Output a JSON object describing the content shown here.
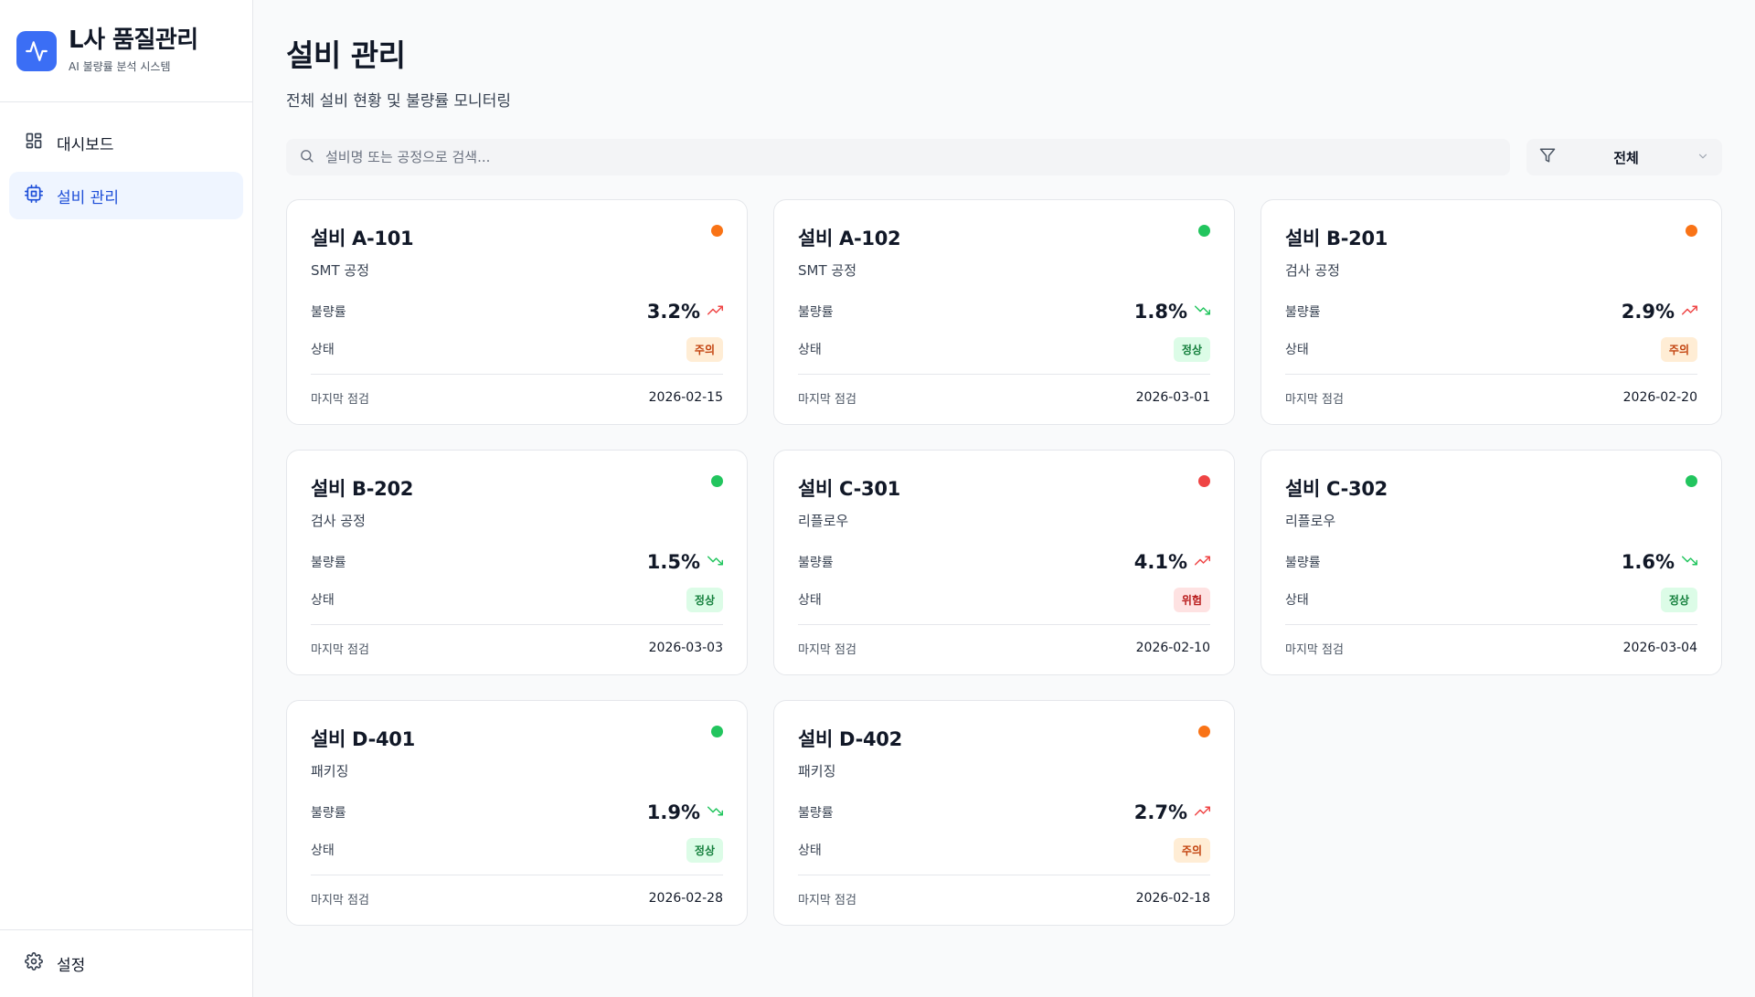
{
  "brand": {
    "title": "L사 품질관리",
    "subtitle": "AI 불량률 분석 시스템",
    "color": "#3b6ef5"
  },
  "nav": [
    {
      "label": "대시보드",
      "icon": "dashboard-grid-icon",
      "active": false
    },
    {
      "label": "설비 관리",
      "icon": "cpu-chip-icon",
      "active": true
    }
  ],
  "settings": {
    "label": "설정",
    "icon": "gear-icon"
  },
  "page": {
    "title": "설비 관리",
    "subtitle": "전체 설비 현황 및 불량률 모니터링"
  },
  "search": {
    "placeholder": "설비명 또는 공정으로 검색...",
    "value": "",
    "icon": "search-icon"
  },
  "filter": {
    "value": "전체",
    "icon": "filter-funnel-icon",
    "chevron": "chevron-down-icon"
  },
  "labels": {
    "rate": "불량률",
    "status": "상태",
    "last_check": "마지막 점검"
  },
  "status_styles": {
    "주의": {
      "dot": "#f97316",
      "bg": "#ffedd5",
      "fg": "#c2410c"
    },
    "정상": {
      "dot": "#22c55e",
      "bg": "#dcfce7",
      "fg": "#15803d"
    },
    "위험": {
      "dot": "#ef4444",
      "bg": "#fee2e2",
      "fg": "#b91c1c"
    }
  },
  "trend_colors": {
    "up": "#ef4444",
    "down": "#22c55e"
  },
  "equipment": [
    {
      "name": "설비 A-101",
      "process": "SMT 공정",
      "rate": "3.2%",
      "trend": "up",
      "status": "주의",
      "last_check": "2026-02-15"
    },
    {
      "name": "설비 A-102",
      "process": "SMT 공정",
      "rate": "1.8%",
      "trend": "down",
      "status": "정상",
      "last_check": "2026-03-01"
    },
    {
      "name": "설비 B-201",
      "process": "검사 공정",
      "rate": "2.9%",
      "trend": "up",
      "status": "주의",
      "last_check": "2026-02-20"
    },
    {
      "name": "설비 B-202",
      "process": "검사 공정",
      "rate": "1.5%",
      "trend": "down",
      "status": "정상",
      "last_check": "2026-03-03"
    },
    {
      "name": "설비 C-301",
      "process": "리플로우",
      "rate": "4.1%",
      "trend": "up",
      "status": "위험",
      "last_check": "2026-02-10"
    },
    {
      "name": "설비 C-302",
      "process": "리플로우",
      "rate": "1.6%",
      "trend": "down",
      "status": "정상",
      "last_check": "2026-03-04"
    },
    {
      "name": "설비 D-401",
      "process": "패키징",
      "rate": "1.9%",
      "trend": "down",
      "status": "정상",
      "last_check": "2026-02-28"
    },
    {
      "name": "설비 D-402",
      "process": "패키징",
      "rate": "2.7%",
      "trend": "up",
      "status": "주의",
      "last_check": "2026-02-18"
    }
  ]
}
